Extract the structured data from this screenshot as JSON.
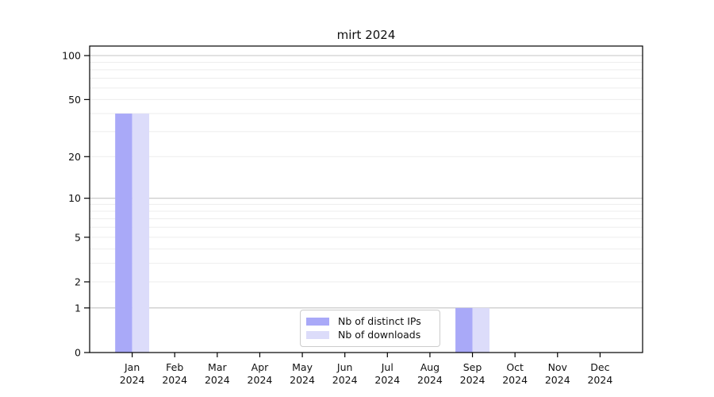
{
  "chart_data": {
    "type": "bar",
    "title": "mirt 2024",
    "categories": [
      "Jan",
      "Feb",
      "Mar",
      "Apr",
      "May",
      "Jun",
      "Jul",
      "Aug",
      "Sep",
      "Oct",
      "Nov",
      "Dec"
    ],
    "category_year": "2024",
    "series": [
      {
        "name": "Nb of distinct IPs",
        "color": "#a9a9f8",
        "values": [
          40,
          0,
          0,
          0,
          0,
          0,
          0,
          0,
          1,
          0,
          0,
          0
        ]
      },
      {
        "name": "Nb of downloads",
        "color": "#dcdcfa",
        "values": [
          40,
          0,
          0,
          0,
          0,
          0,
          0,
          0,
          1,
          0,
          0,
          0
        ]
      }
    ],
    "yscale": "log1p",
    "ylim": [
      0,
      116
    ],
    "yticks": [
      100,
      50,
      20,
      10,
      5,
      2,
      1,
      0
    ],
    "grid_major": [
      100,
      10,
      1
    ],
    "grid_minor": [
      90,
      80,
      70,
      60,
      50,
      40,
      30,
      20,
      9,
      8,
      7,
      6,
      5,
      4,
      3,
      2
    ],
    "grid": true,
    "legend_position": "bottom-center",
    "colors": {
      "spine": "#000000",
      "grid_major": "#c4c4c4",
      "grid_minor": "#ededed",
      "text": "#111111"
    }
  }
}
